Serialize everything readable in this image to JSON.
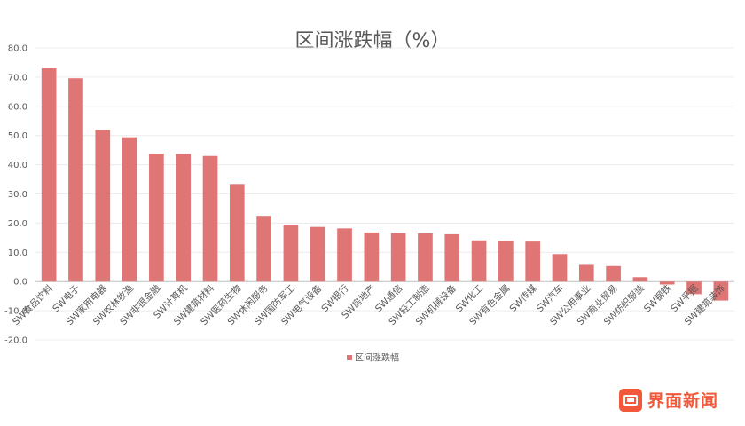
{
  "chart_data": {
    "type": "bar",
    "title": "区间涨跌幅（%）",
    "categories": [
      "SW食品饮料",
      "SW电子",
      "SW家用电器",
      "SW农林牧渔",
      "SW非银金融",
      "SW计算机",
      "SW建筑材料",
      "SW医药生物",
      "SW休闲服务",
      "SW国防军工",
      "SW电气设备",
      "SW银行",
      "SW房地产",
      "SW通信",
      "SW轻工制造",
      "SW机械设备",
      "SW化工",
      "SW有色金属",
      "SW传媒",
      "SW汽车",
      "SW公用事业",
      "SW商业贸易",
      "SW纺织服装",
      "SW钢铁",
      "SW采掘",
      "SW建筑装饰"
    ],
    "series": [
      {
        "name": "区间涨跌幅",
        "color": "#e07575",
        "values": [
          73.0,
          69.6,
          51.9,
          49.4,
          43.8,
          43.7,
          43.0,
          33.4,
          22.5,
          19.2,
          18.7,
          18.2,
          16.8,
          16.6,
          16.5,
          16.2,
          14.1,
          13.9,
          13.7,
          9.4,
          5.7,
          5.3,
          1.5,
          -1.0,
          -4.3,
          -6.5
        ]
      }
    ],
    "ylim": [
      -20,
      80
    ],
    "yticks": [
      "-20.0",
      "-10.0",
      "0.0",
      "10.0",
      "20.0",
      "30.0",
      "40.0",
      "50.0",
      "60.0",
      "70.0",
      "80.0"
    ],
    "ytick_values": [
      -20,
      -10,
      0,
      10,
      20,
      30,
      40,
      50,
      60,
      70,
      80
    ],
    "grid": true,
    "legend": "bottom-center",
    "xlabel": "",
    "ylabel": ""
  },
  "watermark": "界面新闻"
}
